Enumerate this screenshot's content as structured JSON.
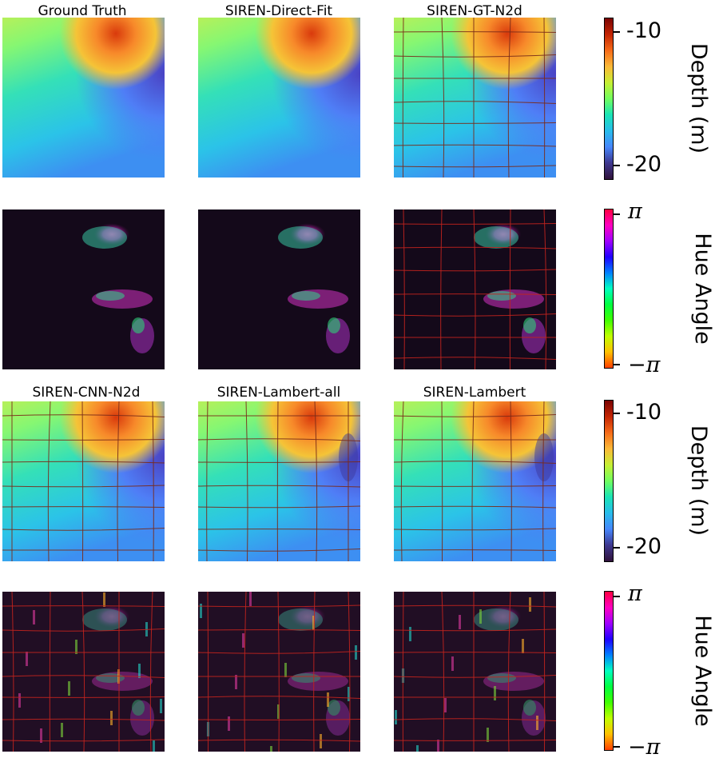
{
  "chart_data": [
    {
      "type": "heatmap",
      "row": "depth",
      "panels": [
        "Ground Truth",
        "SIREN-Direct-Fit",
        "SIREN-GT-N2d"
      ],
      "colorbar": {
        "label": "Depth (m)",
        "ticks": [
          "-10",
          "-20"
        ],
        "range": [
          -21,
          -9
        ],
        "colormap": "turbo"
      }
    },
    {
      "type": "heatmap",
      "row": "hue",
      "panels": [
        "Ground Truth",
        "SIREN-Direct-Fit",
        "SIREN-GT-N2d"
      ],
      "colorbar": {
        "label": "Hue Angle",
        "ticks": [
          "π",
          "−π"
        ],
        "range": [
          "-π",
          "π"
        ],
        "colormap": "hsv"
      }
    },
    {
      "type": "heatmap",
      "row": "depth",
      "panels": [
        "SIREN-CNN-N2d",
        "SIREN-Lambert-all",
        "SIREN-Lambert"
      ],
      "colorbar": {
        "label": "Depth (m)",
        "ticks": [
          "-10",
          "-20"
        ],
        "range": [
          -21,
          -9
        ],
        "colormap": "turbo"
      }
    },
    {
      "type": "heatmap",
      "row": "hue",
      "panels": [
        "SIREN-CNN-N2d",
        "SIREN-Lambert-all",
        "SIREN-Lambert"
      ],
      "colorbar": {
        "label": "Hue Angle",
        "ticks": [
          "π",
          "−π"
        ],
        "range": [
          "-π",
          "π"
        ],
        "colormap": "hsv"
      }
    }
  ],
  "titles": {
    "top": [
      "Ground Truth",
      "SIREN-Direct-Fit",
      "SIREN-GT-N2d"
    ],
    "bottom": [
      "SIREN-CNN-N2d",
      "SIREN-Lambert-all",
      "SIREN-Lambert"
    ]
  },
  "depth_bar": {
    "label": "Depth (m)",
    "tick_top": "-10",
    "tick_bottom": "-20"
  },
  "hue_bar": {
    "label": "Hue Angle",
    "tick_top": "π",
    "tick_bottom": "−π"
  }
}
